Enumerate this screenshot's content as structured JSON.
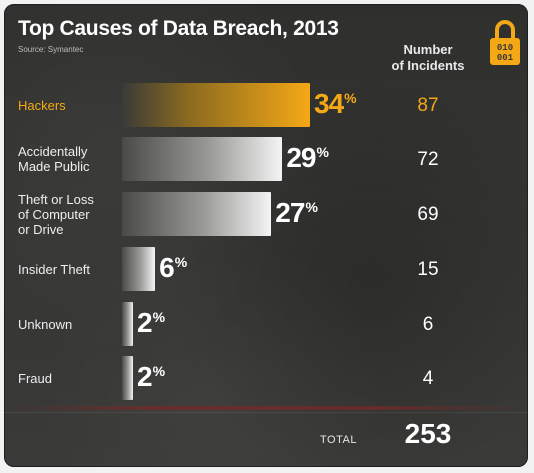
{
  "header": {
    "title": "Top Causes of Data Breach, 2013",
    "source": "Source: Symantec",
    "column_heading_line1": "Number",
    "column_heading_line2": "of Incidents",
    "lock_digits_top": "010",
    "lock_digits_bottom": "001"
  },
  "colors": {
    "highlight": "#f5a816",
    "bar_light": "#f4f4f4",
    "bar_dark": "#4a4a48"
  },
  "chart_data": {
    "type": "bar",
    "orientation": "horizontal",
    "title": "Top Causes of Data Breach, 2013",
    "source": "Source: Symantec",
    "rows": [
      {
        "label_lines": [
          "Hackers"
        ],
        "percent": "34",
        "incidents": "87",
        "highlight": true
      },
      {
        "label_lines": [
          "Accidentally",
          "Made Public"
        ],
        "percent": "29",
        "incidents": "72",
        "highlight": false
      },
      {
        "label_lines": [
          "Theft or Loss",
          "of Computer",
          "or Drive"
        ],
        "percent": "27",
        "incidents": "69",
        "highlight": false
      },
      {
        "label_lines": [
          "Insider Theft"
        ],
        "percent": "6",
        "incidents": "15",
        "highlight": false
      },
      {
        "label_lines": [
          "Unknown"
        ],
        "percent": "2",
        "incidents": "6",
        "highlight": false
      },
      {
        "label_lines": [
          "Fraud"
        ],
        "percent": "2",
        "incidents": "4",
        "highlight": false
      }
    ],
    "percent_symbol": "%",
    "total_label": "TOTAL",
    "total_value": "253",
    "xlim": [
      0,
      34
    ]
  }
}
